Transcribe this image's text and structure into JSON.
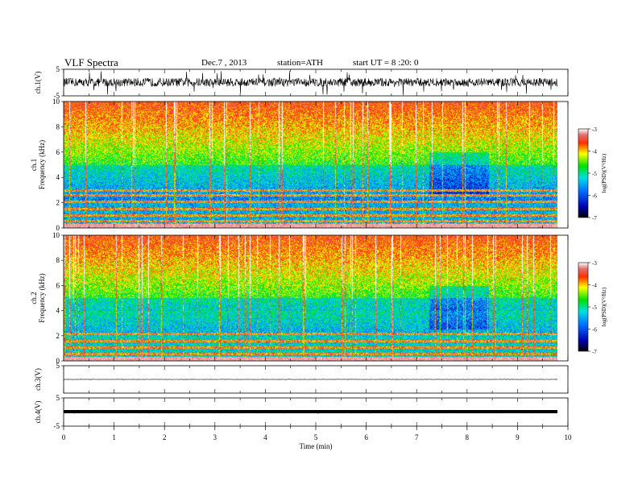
{
  "header": {
    "title": "VLF  Spectra",
    "date": "Dec.7  , 2013",
    "station": "station=ATH",
    "start": "start  UT =   8  :20: 0"
  },
  "chart_data": [
    {
      "type": "line",
      "panel": "ch1-waveform",
      "ylabel": "ch.1(V)",
      "ylim": [
        -5,
        5
      ],
      "yticks": [
        "5",
        "-5"
      ],
      "baseline": 0.1,
      "amplitude": "moderate noise with frequent spikes to the full range"
    },
    {
      "type": "heatmap",
      "panel": "ch1-spectrogram",
      "ylabel": "ch.1\nFrequency  (kHz)",
      "ylim": [
        0,
        10
      ],
      "yticks": [
        "0",
        "2",
        "4",
        "6",
        "8",
        "10"
      ],
      "colorbar": {
        "label": "log(PSD)(V²/Hz)",
        "range": [
          -7,
          -3
        ],
        "ticks": [
          "-3",
          "-4",
          "-5",
          "-6",
          "-7"
        ]
      },
      "lines_khz": [
        0.3,
        0.55,
        1.0,
        1.5,
        2.1,
        2.6,
        3.0
      ]
    },
    {
      "type": "heatmap",
      "panel": "ch2-spectrogram",
      "ylabel": "ch.2\nFrequency  (kHz)",
      "ylim": [
        0,
        10
      ],
      "yticks": [
        "0",
        "2",
        "4",
        "6",
        "8",
        "10"
      ],
      "colorbar": {
        "label": "log(PSD)(V²/Hz)",
        "range": [
          -7,
          -3
        ],
        "ticks": [
          "-3",
          "-4",
          "-5",
          "-6",
          "-7"
        ]
      },
      "lines_khz": [
        0.6,
        1.1,
        1.6,
        2.2
      ]
    },
    {
      "type": "line",
      "panel": "ch3-waveform",
      "ylabel": "ch.3(V)",
      "ylim": [
        -5,
        5
      ],
      "yticks": [
        "5"
      ],
      "baseline": 0
    },
    {
      "type": "line",
      "panel": "ch4-waveform",
      "ylabel": "ch.4(V)",
      "ylim": [
        -5,
        5
      ],
      "yticks": [
        "5",
        "-5"
      ],
      "baseline": 0
    },
    {
      "type": "axis",
      "xlabel": "Time  (min)",
      "xlim": [
        0,
        10
      ],
      "data_end": 9.8,
      "xticks": [
        "0",
        "1",
        "2",
        "3",
        "4",
        "5",
        "6",
        "7",
        "8",
        "9",
        "10"
      ]
    }
  ]
}
